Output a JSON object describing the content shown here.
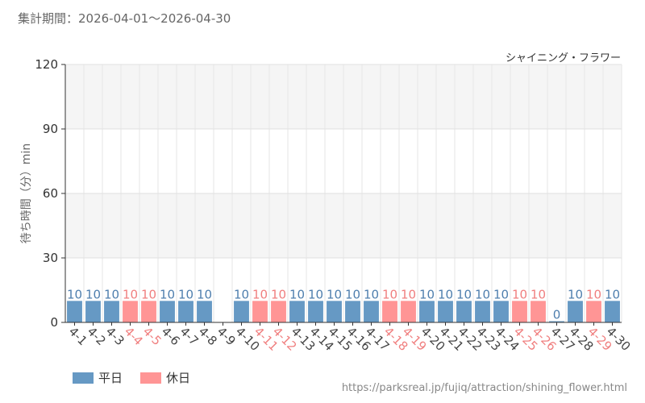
{
  "header": {
    "period_label": "集計期間：2026-04-01～2026-04-30"
  },
  "attraction": {
    "name": "シャイニング・フラワー"
  },
  "footer": {
    "source_url": "https://parksreal.jp/fujiq/attraction/shining_flower.html"
  },
  "legend": {
    "items": [
      {
        "label": "平日",
        "color": "#6699c4"
      },
      {
        "label": "休日",
        "color": "#ff9595"
      }
    ]
  },
  "chart_data": {
    "type": "bar",
    "ylabel": "待ち時間（分）min",
    "ylim": [
      0,
      120
    ],
    "yticks": [
      0,
      30,
      60,
      90,
      120
    ],
    "grid": true,
    "legend_position": "bottom-left",
    "categories": [
      "4-1",
      "4-2",
      "4-3",
      "4-4",
      "4-5",
      "4-6",
      "4-7",
      "4-8",
      "4-9",
      "4-10",
      "4-11",
      "4-12",
      "4-13",
      "4-14",
      "4-15",
      "4-16",
      "4-17",
      "4-18",
      "4-19",
      "4-20",
      "4-21",
      "4-22",
      "4-23",
      "4-24",
      "4-25",
      "4-26",
      "4-27",
      "4-28",
      "4-29",
      "4-30"
    ],
    "values": [
      10,
      10,
      10,
      10,
      10,
      10,
      10,
      10,
      null,
      10,
      10,
      10,
      10,
      10,
      10,
      10,
      10,
      10,
      10,
      10,
      10,
      10,
      10,
      10,
      10,
      10,
      0,
      10,
      10,
      10
    ],
    "day_type": [
      "平日",
      "平日",
      "平日",
      "休日",
      "休日",
      "平日",
      "平日",
      "平日",
      "平日",
      "平日",
      "休日",
      "休日",
      "平日",
      "平日",
      "平日",
      "平日",
      "平日",
      "休日",
      "休日",
      "平日",
      "平日",
      "平日",
      "平日",
      "平日",
      "休日",
      "休日",
      "平日",
      "平日",
      "休日",
      "平日"
    ],
    "colors": {
      "平日": "#6699c4",
      "休日": "#ff9595",
      "平日_text": "#4f7fae",
      "休日_text": "#f07f7f"
    }
  }
}
